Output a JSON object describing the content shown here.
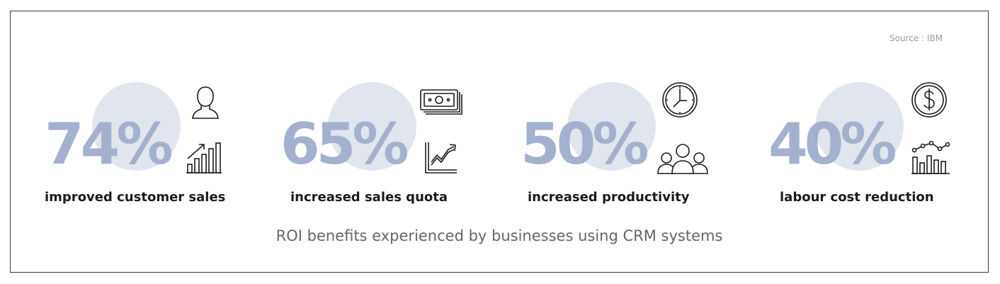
{
  "source": "Source : IBM",
  "stats": [
    {
      "value": "74%",
      "label": "improved customer sales",
      "top_icon": "person-icon",
      "bottom_icon": "growth-bar-chart-icon"
    },
    {
      "value": "65%",
      "label": "increased sales quota",
      "top_icon": "banknotes-icon",
      "bottom_icon": "trend-line-chart-icon"
    },
    {
      "value": "50%",
      "label": "increased productivity",
      "top_icon": "clock-icon",
      "bottom_icon": "team-icon"
    },
    {
      "value": "40%",
      "label": "labour cost reduction",
      "top_icon": "dollar-coin-icon",
      "bottom_icon": "line-bar-chart-icon"
    }
  ],
  "caption": "ROI benefits experienced by businesses using CRM systems",
  "colors": {
    "percent": "#a3b1ce",
    "circle": "#e1e5ee",
    "label": "#1b1b1b",
    "caption": "#666666",
    "border": "#3a3a3a"
  }
}
